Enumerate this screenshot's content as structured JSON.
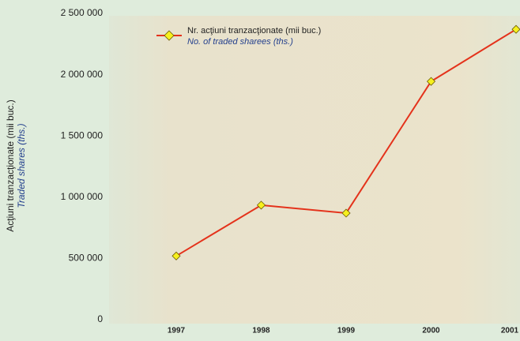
{
  "chart_data": {
    "type": "line",
    "categories": [
      "1997",
      "1998",
      "1999",
      "2000",
      "2001"
    ],
    "series": [
      {
        "name": "Nr. acţiuni tranzacţionate (mii buc.)",
        "name_en": "No. of traded sharees (ths.)",
        "color": "#e4321b",
        "values": [
          520000,
          935000,
          870000,
          1945000,
          2370000
        ]
      }
    ],
    "ylabel": "Acţiuni tranzacţionate (mii buc.)",
    "ylabel_en": "Traded shares (ths.)",
    "ylim": [
      0,
      2500000
    ],
    "yticks": [
      0,
      {
        "value": 500000,
        "label": "500 000"
      },
      {
        "value": 1000000,
        "label": "1 000 000"
      },
      {
        "value": 1500000,
        "label": "1 500 000"
      },
      {
        "value": 2000000,
        "label": "2 000 000"
      },
      {
        "value": 2500000,
        "label": "2 500 000"
      }
    ],
    "grid": false,
    "marker_color": "#f6f01e"
  }
}
